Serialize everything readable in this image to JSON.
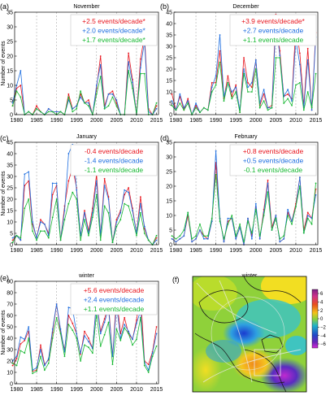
{
  "figure": {
    "panels": [
      {
        "letter": "(a)",
        "title": "November",
        "ylabel": "Number of events",
        "trends": [
          {
            "text": "+2.5 events/decade*",
            "color": "#e8141c"
          },
          {
            "text": "+2.0 events/decade*",
            "color": "#1f6fe0"
          },
          {
            "text": "+1.7 events/decade*",
            "color": "#17b832"
          }
        ]
      },
      {
        "letter": "(b)",
        "title": "December",
        "ylabel": "",
        "trends": [
          {
            "text": "+3.9 events/decade*",
            "color": "#e8141c"
          },
          {
            "text": "+2.7 events/decade",
            "color": "#1f6fe0"
          },
          {
            "text": "+1.1 events/decade",
            "color": "#17b832"
          }
        ]
      },
      {
        "letter": "(c)",
        "title": "January",
        "ylabel": "Number of events",
        "trends": [
          {
            "text": "-0.4 events/decade",
            "color": "#e8141c"
          },
          {
            "text": "-1.4 events/decade",
            "color": "#1f6fe0"
          },
          {
            "text": "-1.1 events/decade",
            "color": "#17b832"
          }
        ]
      },
      {
        "letter": "(d)",
        "title": "February",
        "ylabel": "",
        "trends": [
          {
            "text": "+0.8 events/decade",
            "color": "#e8141c"
          },
          {
            "text": "+0.5 events/decade",
            "color": "#1f6fe0"
          },
          {
            "text": "-0.1 events/decade",
            "color": "#17b832"
          }
        ]
      },
      {
        "letter": "(e)",
        "title": "winter",
        "ylabel": "Number of events",
        "trends": [
          {
            "text": "+5.6 events/decade",
            "color": "#e8141c"
          },
          {
            "text": "+2.4 events/decade",
            "color": "#1f6fe0"
          },
          {
            "text": "+1.1 events/decade",
            "color": "#17b832"
          }
        ]
      }
    ],
    "map_panel": {
      "letter": "(f)",
      "title": "winter",
      "colorbar_ticks": [
        "6",
        "4",
        "2",
        "0",
        "−2",
        "−4",
        "−6"
      ]
    }
  },
  "colors": {
    "red": "#e8141c",
    "blue": "#1f6fe0",
    "green": "#17b832",
    "grid": "#9a9a9a",
    "axis": "#000000"
  },
  "chart_data": [
    {
      "type": "line",
      "title": "November",
      "xlabel": "",
      "ylabel": "Number of events",
      "xlim": [
        1979.5,
        2015.5
      ],
      "ylim": [
        0,
        35
      ],
      "xticks": [
        1980,
        1985,
        1990,
        1995,
        2000,
        2005,
        2010,
        2015
      ],
      "yticks": [
        0,
        5,
        10,
        15,
        20,
        25,
        30,
        35
      ],
      "grid": "dashed vertical",
      "x": [
        1979,
        1980,
        1981,
        1982,
        1983,
        1984,
        1985,
        1986,
        1987,
        1988,
        1989,
        1990,
        1991,
        1992,
        1993,
        1994,
        1995,
        1996,
        1997,
        1998,
        1999,
        2000,
        2001,
        2002,
        2003,
        2004,
        2005,
        2006,
        2007,
        2008,
        2009,
        2010,
        2011,
        2012,
        2013,
        2014,
        2015
      ],
      "series": [
        {
          "color": "#e8141c",
          "values": [
            3,
            9,
            10,
            0,
            1,
            0,
            3,
            1,
            0,
            2,
            1,
            1,
            1,
            0,
            7,
            2,
            3,
            7,
            4,
            5,
            0,
            9,
            20,
            3,
            7,
            8,
            4,
            0,
            0,
            21,
            12,
            0,
            19,
            27,
            2,
            0,
            3
          ]
        },
        {
          "color": "#1f6fe0",
          "values": [
            4,
            10,
            15,
            0,
            1,
            0,
            2,
            1,
            0,
            2,
            1,
            1,
            1,
            0,
            5,
            2,
            3,
            6,
            4,
            4,
            0,
            10,
            17,
            2,
            7,
            7,
            5,
            0,
            0,
            18,
            11,
            0,
            16,
            25,
            1,
            0,
            2
          ]
        },
        {
          "color": "#17b832",
          "values": [
            3,
            8,
            6,
            0,
            1,
            0,
            2,
            1,
            0,
            1,
            1,
            0,
            1,
            0,
            6,
            1,
            2,
            8,
            4,
            3,
            0,
            7,
            13,
            2,
            3,
            6,
            3,
            0,
            0,
            15,
            9,
            0,
            14,
            14,
            0,
            0,
            4
          ]
        }
      ]
    },
    {
      "type": "line",
      "title": "December",
      "xlabel": "",
      "ylabel": "",
      "xlim": [
        1979.5,
        2015.5
      ],
      "ylim": [
        0,
        45
      ],
      "xticks": [
        1980,
        1985,
        1990,
        1995,
        2000,
        2005,
        2010,
        2015
      ],
      "yticks": [
        0,
        5,
        10,
        15,
        20,
        25,
        30,
        35,
        40,
        45
      ],
      "grid": "dashed vertical",
      "x": [
        1979,
        1980,
        1981,
        1982,
        1983,
        1984,
        1985,
        1986,
        1987,
        1988,
        1989,
        1990,
        1991,
        1992,
        1993,
        1994,
        1995,
        1996,
        1997,
        1998,
        1999,
        2000,
        2001,
        2002,
        2003,
        2004,
        2005,
        2006,
        2007,
        2008,
        2009,
        2010,
        2011,
        2012,
        2013,
        2014,
        2015
      ],
      "series": [
        {
          "color": "#e8141c",
          "values": [
            9,
            2,
            8,
            2,
            7,
            0,
            4,
            1,
            3,
            2,
            14,
            14,
            28,
            7,
            17,
            8,
            13,
            1,
            25,
            14,
            12,
            24,
            4,
            9,
            3,
            4,
            44,
            28,
            8,
            9,
            7,
            39,
            27,
            4,
            29,
            2,
            36
          ]
        },
        {
          "color": "#1f6fe0",
          "values": [
            6,
            2,
            9,
            3,
            6,
            0,
            5,
            1,
            3,
            2,
            12,
            17,
            35,
            8,
            14,
            10,
            12,
            2,
            20,
            12,
            14,
            24,
            5,
            11,
            3,
            3,
            40,
            26,
            8,
            11,
            6,
            33,
            22,
            3,
            24,
            2,
            34
          ]
        },
        {
          "color": "#17b832",
          "values": [
            4,
            2,
            5,
            2,
            5,
            0,
            3,
            1,
            3,
            2,
            10,
            13,
            23,
            6,
            14,
            7,
            10,
            1,
            18,
            10,
            10,
            20,
            3,
            6,
            2,
            3,
            25,
            25,
            5,
            7,
            4,
            13,
            14,
            2,
            10,
            3,
            18
          ]
        }
      ]
    },
    {
      "type": "line",
      "title": "January",
      "xlabel": "",
      "ylabel": "Number of events",
      "xlim": [
        1979.5,
        2015.5
      ],
      "ylim": [
        0,
        45
      ],
      "xticks": [
        1980,
        1985,
        1990,
        1995,
        2000,
        2005,
        2010,
        2015
      ],
      "yticks": [
        0,
        5,
        10,
        15,
        20,
        25,
        30,
        35,
        40,
        45
      ],
      "grid": "dashed vertical",
      "x": [
        1979,
        1980,
        1981,
        1982,
        1983,
        1984,
        1985,
        1986,
        1987,
        1988,
        1989,
        1990,
        1991,
        1992,
        1993,
        1994,
        1995,
        1996,
        1997,
        1998,
        1999,
        2000,
        2001,
        2002,
        2003,
        2004,
        2005,
        2006,
        2007,
        2008,
        2009,
        2010,
        2011,
        2012,
        2013,
        2014,
        2015
      ],
      "series": [
        {
          "color": "#e8141c",
          "values": [
            2,
            4,
            2,
            26,
            28,
            9,
            3,
            11,
            9,
            5,
            22,
            26,
            2,
            17,
            28,
            34,
            25,
            4,
            15,
            6,
            16,
            31,
            4,
            29,
            21,
            1,
            11,
            15,
            22,
            25,
            16,
            5,
            21,
            7,
            2,
            0,
            3
          ]
        },
        {
          "color": "#1f6fe0",
          "values": [
            3,
            4,
            2,
            31,
            32,
            10,
            3,
            10,
            9,
            4,
            27,
            27,
            2,
            15,
            40,
            44,
            24,
            4,
            14,
            5,
            14,
            28,
            4,
            26,
            20,
            1,
            10,
            14,
            24,
            23,
            15,
            5,
            18,
            8,
            2,
            0,
            2
          ]
        },
        {
          "color": "#17b832",
          "values": [
            1,
            4,
            3,
            16,
            20,
            6,
            2,
            6,
            6,
            3,
            12,
            20,
            2,
            11,
            18,
            23,
            20,
            2,
            11,
            4,
            12,
            22,
            2,
            17,
            14,
            1,
            8,
            11,
            18,
            17,
            11,
            4,
            14,
            5,
            2,
            0,
            4
          ]
        }
      ]
    },
    {
      "type": "line",
      "title": "February",
      "xlabel": "",
      "ylabel": "",
      "xlim": [
        1979.5,
        2015.5
      ],
      "ylim": [
        0,
        35
      ],
      "xticks": [
        1980,
        1985,
        1990,
        1995,
        2000,
        2005,
        2010,
        2015
      ],
      "yticks": [
        0,
        5,
        10,
        15,
        20,
        25,
        30,
        35
      ],
      "grid": "dashed vertical",
      "x": [
        1979,
        1980,
        1981,
        1982,
        1983,
        1984,
        1985,
        1986,
        1987,
        1988,
        1989,
        1990,
        1991,
        1992,
        1993,
        1994,
        1995,
        1996,
        1997,
        1998,
        1999,
        2000,
        2001,
        2002,
        2003,
        2004,
        2005,
        2006,
        2007,
        2008,
        2009,
        2010,
        2011,
        2012,
        2013,
        2014,
        2015
      ],
      "series": [
        {
          "color": "#e8141c",
          "values": [
            2,
            1,
            2,
            3,
            10,
            1,
            2,
            5,
            3,
            2,
            8,
            28,
            9,
            1,
            8,
            9,
            2,
            6,
            0,
            9,
            3,
            13,
            2,
            12,
            22,
            6,
            10,
            1,
            2,
            11,
            8,
            14,
            23,
            5,
            11,
            9,
            19
          ]
        },
        {
          "color": "#1f6fe0",
          "values": [
            2,
            1,
            2,
            3,
            11,
            1,
            2,
            5,
            2,
            2,
            8,
            32,
            9,
            1,
            9,
            9,
            2,
            6,
            0,
            9,
            2,
            14,
            2,
            11,
            21,
            5,
            10,
            1,
            2,
            12,
            8,
            13,
            23,
            4,
            10,
            9,
            17
          ]
        },
        {
          "color": "#17b832",
          "values": [
            3,
            2,
            3,
            5,
            11,
            2,
            3,
            7,
            3,
            3,
            9,
            24,
            8,
            2,
            7,
            10,
            3,
            7,
            1,
            8,
            4,
            12,
            3,
            10,
            18,
            5,
            9,
            2,
            3,
            10,
            7,
            13,
            20,
            4,
            9,
            7,
            21
          ]
        }
      ]
    },
    {
      "type": "line",
      "title": "winter",
      "xlabel": "",
      "ylabel": "Number of events",
      "xlim": [
        1979.5,
        2015.5
      ],
      "ylim": [
        0,
        90
      ],
      "xticks": [
        1980,
        1985,
        1990,
        1995,
        2000,
        2005,
        2010,
        2015
      ],
      "yticks": [
        0,
        10,
        20,
        30,
        40,
        50,
        60,
        70,
        80,
        90
      ],
      "grid": "dashed vertical",
      "x": [
        1979,
        1980,
        1981,
        1982,
        1983,
        1984,
        1985,
        1986,
        1987,
        1988,
        1989,
        1990,
        1991,
        1992,
        1993,
        1994,
        1995,
        1996,
        1997,
        1998,
        1999,
        2000,
        2001,
        2002,
        2003,
        2004,
        2005,
        2006,
        2007,
        2008,
        2009,
        2010,
        2011,
        2012,
        2013,
        2014,
        2015
      ],
      "series": [
        {
          "color": "#e8141c",
          "values": [
            16,
            22,
            35,
            38,
            46,
            11,
            12,
            34,
            17,
            21,
            45,
            70,
            45,
            30,
            60,
            53,
            44,
            26,
            46,
            40,
            31,
            74,
            46,
            57,
            70,
            24,
            77,
            44,
            58,
            44,
            39,
            56,
            80,
            20,
            17,
            28,
            50
          ]
        },
        {
          "color": "#1f6fe0",
          "values": [
            20,
            24,
            41,
            39,
            50,
            12,
            14,
            30,
            16,
            22,
            48,
            70,
            48,
            28,
            67,
            66,
            44,
            27,
            42,
            37,
            31,
            72,
            44,
            54,
            66,
            24,
            69,
            40,
            52,
            46,
            39,
            53,
            64,
            19,
            12,
            27,
            44
          ]
        },
        {
          "color": "#17b832",
          "values": [
            18,
            16,
            29,
            27,
            40,
            9,
            11,
            24,
            12,
            18,
            40,
            58,
            44,
            24,
            52,
            47,
            40,
            20,
            34,
            32,
            27,
            62,
            33,
            43,
            54,
            17,
            48,
            38,
            49,
            44,
            34,
            39,
            58,
            16,
            10,
            24,
            33
          ]
        }
      ]
    }
  ]
}
